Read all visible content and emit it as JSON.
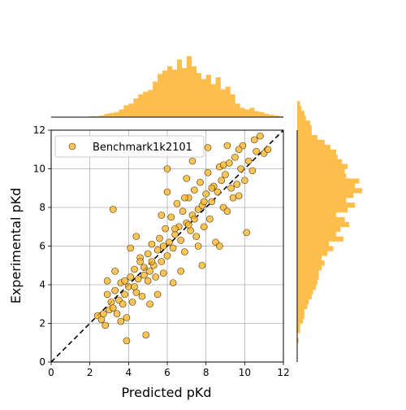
{
  "chart_data": {
    "type": "scatter",
    "title": "",
    "xlabel": "Predicted pKd",
    "ylabel": "Experimental pKd",
    "xlim": [
      0,
      12
    ],
    "ylim": [
      0,
      12
    ],
    "xticks": [
      "0",
      "2",
      "4",
      "6",
      "8",
      "10",
      "12"
    ],
    "yticks": [
      "0",
      "2",
      "4",
      "6",
      "8",
      "10",
      "12"
    ],
    "grid": true,
    "legend": {
      "placement": "top-left",
      "label": "Benchmark1k2101"
    },
    "reference_line": {
      "style": "dashed",
      "color": "#000000",
      "from": [
        0,
        0
      ],
      "to": [
        12,
        12
      ]
    },
    "colors": {
      "points": "#ffb62e",
      "edge": "#3d2e00",
      "histogram": "#ffbe4c"
    },
    "marginal_histograms": [
      "top: predicted pKd",
      "right: experimental pKd"
    ],
    "series": [
      {
        "name": "Benchmark1k2101",
        "points": [
          [
            2.4,
            2.4
          ],
          [
            2.6,
            2.2
          ],
          [
            2.8,
            1.9
          ],
          [
            2.7,
            2.5
          ],
          [
            2.9,
            3.5
          ],
          [
            3.0,
            2.7
          ],
          [
            3.1,
            3.1
          ],
          [
            3.2,
            2.8
          ],
          [
            3.3,
            3.7
          ],
          [
            3.4,
            2.5
          ],
          [
            3.5,
            3.2
          ],
          [
            3.6,
            4.1
          ],
          [
            3.7,
            3.0
          ],
          [
            3.8,
            3.5
          ],
          [
            3.9,
            1.1
          ],
          [
            3.9,
            2.3
          ],
          [
            4.0,
            3.9
          ],
          [
            4.1,
            4.4
          ],
          [
            4.2,
            3.1
          ],
          [
            4.3,
            4.8
          ],
          [
            4.4,
            3.6
          ],
          [
            4.5,
            4.3
          ],
          [
            4.6,
            5.4
          ],
          [
            4.7,
            3.4
          ],
          [
            4.8,
            4.9
          ],
          [
            4.9,
            1.4
          ],
          [
            5.0,
            4.2
          ],
          [
            5.0,
            5.6
          ],
          [
            5.1,
            4.7
          ],
          [
            5.2,
            6.1
          ],
          [
            5.3,
            5.0
          ],
          [
            5.4,
            4.4
          ],
          [
            5.5,
            5.8
          ],
          [
            5.6,
            6.4
          ],
          [
            5.7,
            5.2
          ],
          [
            5.8,
            4.6
          ],
          [
            5.9,
            6.9
          ],
          [
            6.0,
            5.5
          ],
          [
            6.0,
            10.0
          ],
          [
            6.1,
            6.2
          ],
          [
            6.2,
            7.5
          ],
          [
            6.3,
            5.9
          ],
          [
            6.4,
            6.6
          ],
          [
            6.5,
            8.2
          ],
          [
            6.6,
            7.0
          ],
          [
            6.7,
            6.3
          ],
          [
            6.8,
            7.8
          ],
          [
            6.9,
            5.7
          ],
          [
            7.0,
            7.2
          ],
          [
            7.0,
            9.5
          ],
          [
            7.1,
            8.5
          ],
          [
            7.2,
            6.8
          ],
          [
            7.3,
            7.6
          ],
          [
            7.4,
            8.9
          ],
          [
            7.5,
            6.5
          ],
          [
            7.6,
            7.9
          ],
          [
            7.7,
            9.3
          ],
          [
            7.8,
            8.1
          ],
          [
            7.9,
            7.0
          ],
          [
            8.0,
            8.7
          ],
          [
            8.1,
            9.8
          ],
          [
            8.2,
            7.4
          ],
          [
            8.3,
            8.3
          ],
          [
            8.4,
            9.1
          ],
          [
            8.5,
            6.2
          ],
          [
            8.6,
            8.8
          ],
          [
            8.7,
            10.1
          ],
          [
            8.8,
            9.4
          ],
          [
            8.9,
            8.0
          ],
          [
            9.0,
            9.7
          ],
          [
            9.1,
            7.8
          ],
          [
            9.2,
            10.3
          ],
          [
            9.3,
            9.0
          ],
          [
            9.4,
            8.5
          ],
          [
            9.5,
            10.6
          ],
          [
            9.6,
            9.2
          ],
          [
            9.7,
            8.6
          ],
          [
            9.8,
            10.0
          ],
          [
            9.9,
            11.2
          ],
          [
            10.0,
            9.4
          ],
          [
            10.1,
            6.7
          ],
          [
            10.2,
            10.4
          ],
          [
            10.4,
            9.9
          ],
          [
            10.5,
            11.5
          ],
          [
            10.6,
            10.9
          ],
          [
            10.8,
            11.7
          ],
          [
            11.0,
            10.8
          ],
          [
            11.2,
            11.0
          ],
          [
            3.2,
            7.9
          ],
          [
            9.1,
            11.2
          ],
          [
            3.6,
            2.1
          ],
          [
            4.1,
            5.9
          ],
          [
            6.3,
            4.1
          ],
          [
            5.1,
            3.0
          ],
          [
            7.8,
            5.0
          ],
          [
            8.7,
            6.0
          ],
          [
            2.9,
            4.2
          ],
          [
            4.4,
            6.5
          ],
          [
            6.0,
            8.8
          ],
          [
            7.3,
            10.4
          ],
          [
            5.5,
            3.5
          ],
          [
            6.7,
            4.7
          ],
          [
            8.1,
            11.1
          ],
          [
            3.3,
            4.7
          ],
          [
            4.6,
            5.2
          ],
          [
            5.7,
            7.6
          ],
          [
            6.9,
            8.5
          ],
          [
            7.6,
            6.0
          ],
          [
            8.9,
            10.2
          ],
          [
            9.7,
            11.0
          ],
          [
            5.2,
            5.2
          ],
          [
            5.8,
            6.0
          ],
          [
            6.4,
            6.9
          ],
          [
            7.1,
            7.1
          ],
          [
            7.4,
            7.4
          ],
          [
            7.9,
            8.3
          ],
          [
            8.3,
            9.0
          ],
          [
            4.8,
            4.5
          ],
          [
            4.3,
            3.9
          ],
          [
            3.8,
            4.2
          ]
        ]
      }
    ],
    "hist_top": {
      "bin_start": 2.0,
      "bin_width": 0.25,
      "counts": [
        1,
        1,
        2,
        4,
        5,
        6,
        9,
        14,
        16,
        22,
        27,
        30,
        32,
        42,
        51,
        55,
        60,
        56,
        68,
        58,
        72,
        60,
        52,
        45,
        50,
        39,
        47,
        33,
        36,
        27,
        16,
        11,
        9,
        11,
        7,
        6,
        4,
        3,
        2,
        1
      ]
    },
    "hist_right": {
      "bin_start": 1.0,
      "bin_width": 0.25,
      "counts": [
        1,
        0,
        2,
        2,
        4,
        5,
        5,
        7,
        8,
        10,
        11,
        13,
        14,
        15,
        15,
        17,
        19,
        17,
        21,
        25,
        22,
        32,
        27,
        30,
        36,
        33,
        27,
        35,
        40,
        34,
        39,
        45,
        40,
        43,
        34,
        33,
        35,
        31,
        28,
        27,
        23,
        19,
        14,
        10,
        10,
        9,
        6,
        5,
        3,
        2
      ]
    }
  }
}
